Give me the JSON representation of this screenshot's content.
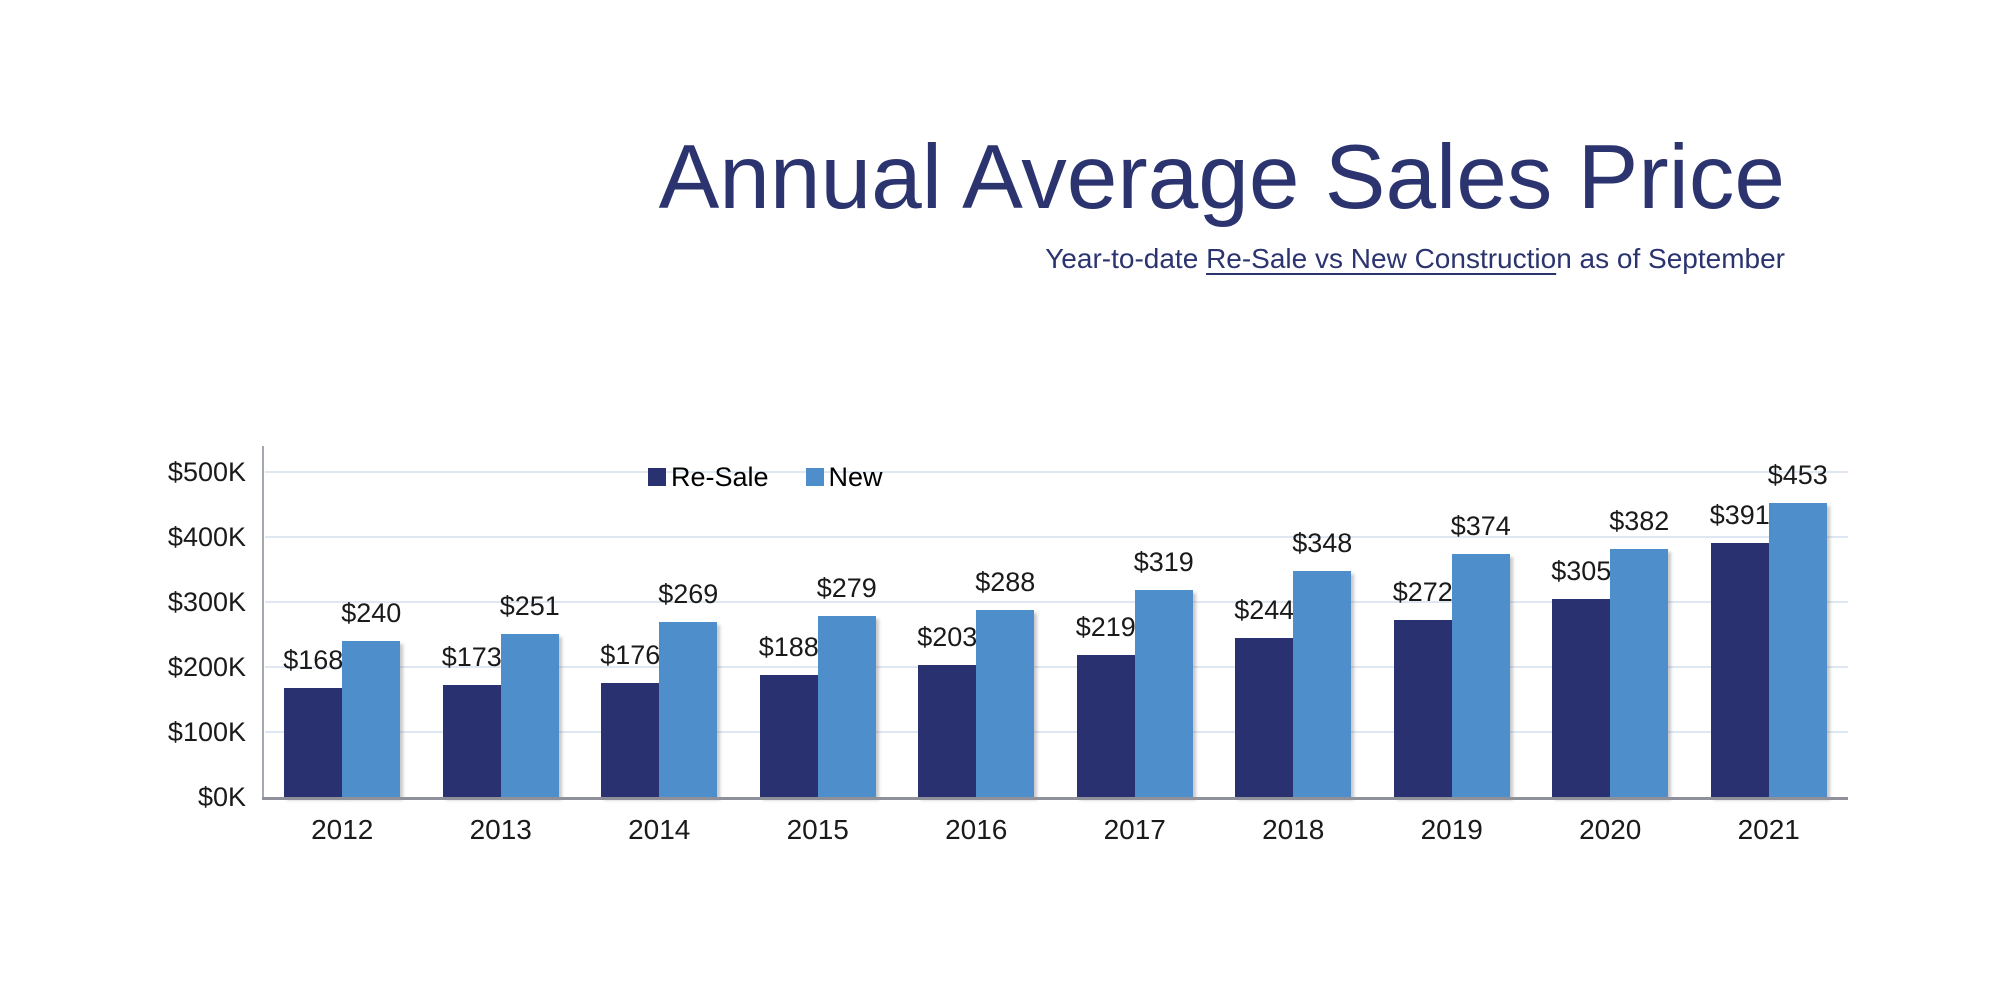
{
  "header": {
    "title": "Annual Average Sales Price",
    "subtitle_prefix": "Year-to-date ",
    "subtitle_underlined": "Re-Sale vs New Constructio",
    "subtitle_suffix": "n as of September"
  },
  "colors": {
    "heading_navy": "#2b346f",
    "resale_bar": "#2a3170",
    "new_bar": "#4e8ecb",
    "label_text": "#1a1a1a",
    "gridline": "#dee7f2",
    "y_axis_line": "#a5a8b0",
    "baseline": "#8f919a"
  },
  "chart_data": {
    "type": "bar",
    "title": "Annual Average Sales Price",
    "subtitle": "Year-to-date Re-Sale vs New Construction as of September",
    "categories": [
      "2012",
      "2013",
      "2014",
      "2015",
      "2016",
      "2017",
      "2018",
      "2019",
      "2020",
      "2021"
    ],
    "series": [
      {
        "name": "Re-Sale",
        "color": "#2a3170",
        "values": [
          168,
          173,
          176,
          188,
          203,
          219,
          244,
          272,
          305,
          391
        ]
      },
      {
        "name": "New",
        "color": "#4e8ecb",
        "values": [
          240,
          251,
          269,
          279,
          288,
          319,
          348,
          374,
          382,
          453
        ]
      }
    ],
    "value_label_prefix": "$",
    "value_labels": {
      "Re-Sale": [
        "$168",
        "$173",
        "$176",
        "$188",
        "$203",
        "$219",
        "$244",
        "$272",
        "$305",
        "$391"
      ],
      "New": [
        "$240",
        "$251",
        "$269",
        "$279",
        "$288",
        "$319",
        "$348",
        "$374",
        "$382",
        "$453"
      ]
    },
    "xlabel": "",
    "ylabel": "",
    "ylim": [
      0,
      500
    ],
    "y_ticks": [
      0,
      100,
      200,
      300,
      400,
      500
    ],
    "y_tick_labels": [
      "$0K",
      "$100K",
      "$200K",
      "$300K",
      "$400K",
      "$500K"
    ],
    "grid": true,
    "legend_position": "top-left-inside"
  }
}
